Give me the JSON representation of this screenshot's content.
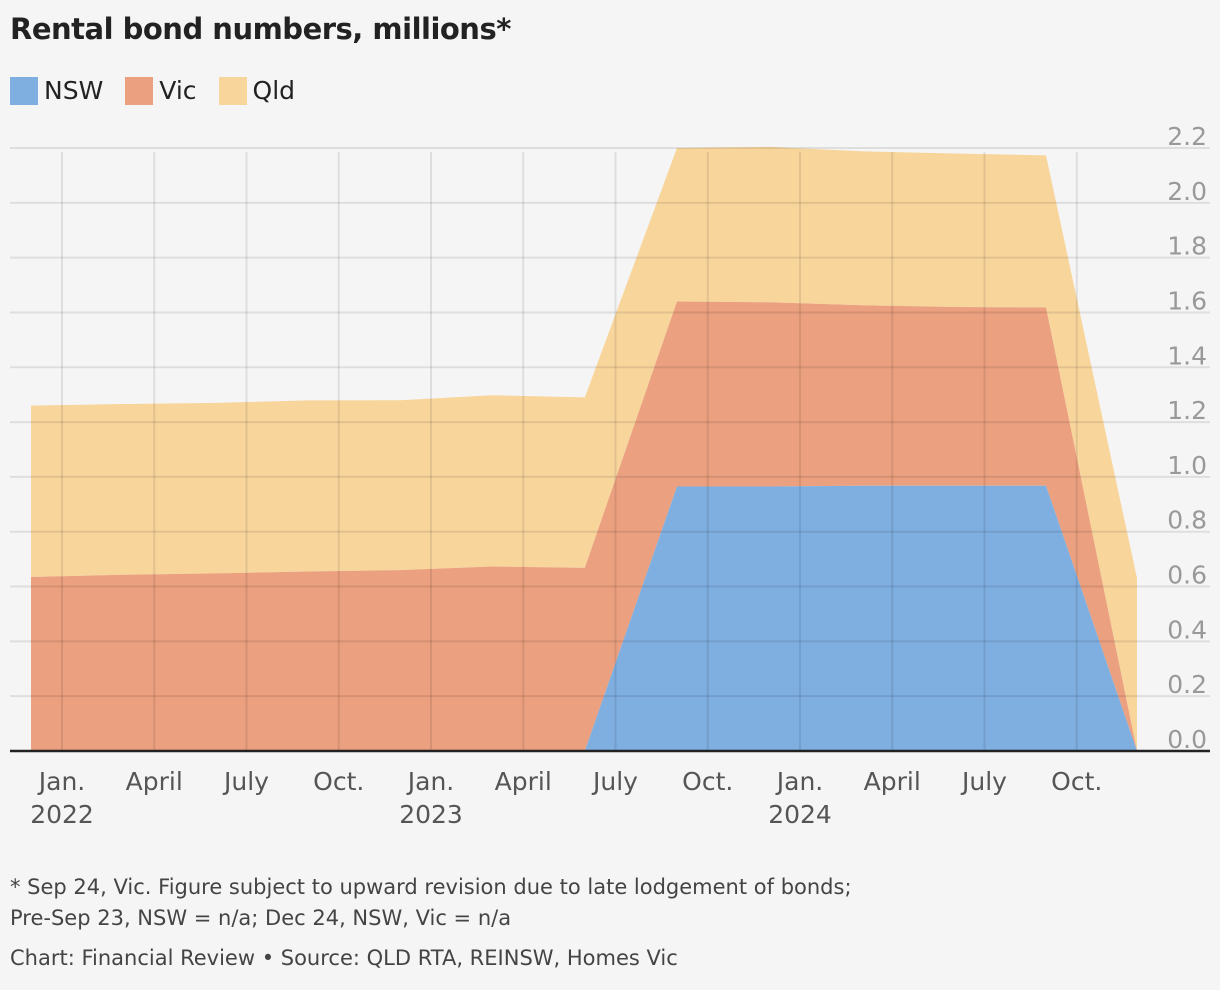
{
  "chart_data": {
    "type": "area",
    "stacked": true,
    "title": "Rental bond numbers, millions*",
    "x": [
      "2021-12",
      "2022-03",
      "2022-06",
      "2022-09",
      "2022-12",
      "2023-03",
      "2023-06",
      "2023-09",
      "2023-12",
      "2024-03",
      "2024-06",
      "2024-09",
      "2024-12"
    ],
    "series": [
      {
        "name": "NSW",
        "color": "#7faee0",
        "values": [
          0,
          0,
          0,
          0,
          0,
          0,
          0,
          0.965,
          0.965,
          0.968,
          0.968,
          0.968,
          0
        ]
      },
      {
        "name": "Vic",
        "color": "#eba07f",
        "values": [
          0.635,
          0.643,
          0.648,
          0.655,
          0.66,
          0.673,
          0.668,
          0.675,
          0.672,
          0.658,
          0.652,
          0.65,
          0
        ]
      },
      {
        "name": "Qld",
        "color": "#f8d59b",
        "values": [
          0.625,
          0.623,
          0.622,
          0.624,
          0.62,
          0.625,
          0.622,
          0.56,
          0.567,
          0.562,
          0.56,
          0.555,
          0.63
        ]
      }
    ],
    "ylim": [
      0,
      2.2
    ],
    "yticks": [
      "0.0",
      "0.2",
      "0.4",
      "0.6",
      "0.8",
      "1.0",
      "1.2",
      "1.4",
      "1.6",
      "1.8",
      "2.0",
      "2.2"
    ],
    "xticks": [
      {
        "date": "2022-01",
        "label": "Jan.",
        "year": "2022"
      },
      {
        "date": "2022-04",
        "label": "April",
        "year": ""
      },
      {
        "date": "2022-07",
        "label": "July",
        "year": ""
      },
      {
        "date": "2022-10",
        "label": "Oct.",
        "year": ""
      },
      {
        "date": "2023-01",
        "label": "Jan.",
        "year": "2023"
      },
      {
        "date": "2023-04",
        "label": "April",
        "year": ""
      },
      {
        "date": "2023-07",
        "label": "July",
        "year": ""
      },
      {
        "date": "2023-10",
        "label": "Oct.",
        "year": ""
      },
      {
        "date": "2024-01",
        "label": "Jan.",
        "year": "2024"
      },
      {
        "date": "2024-04",
        "label": "April",
        "year": ""
      },
      {
        "date": "2024-07",
        "label": "July",
        "year": ""
      },
      {
        "date": "2024-10",
        "label": "Oct.",
        "year": ""
      }
    ],
    "grid": true,
    "legend": "top-left",
    "yaxis_position": "right"
  },
  "notes": {
    "line1": "* Sep 24, Vic. Figure subject to upward revision due to late lodgement of bonds;",
    "line2": "Pre-Sep 23, NSW = n/a; Dec 24, NSW, Vic = n/a",
    "credit": "Chart: Financial Review • Source: QLD RTA, REINSW, Homes Vic"
  }
}
